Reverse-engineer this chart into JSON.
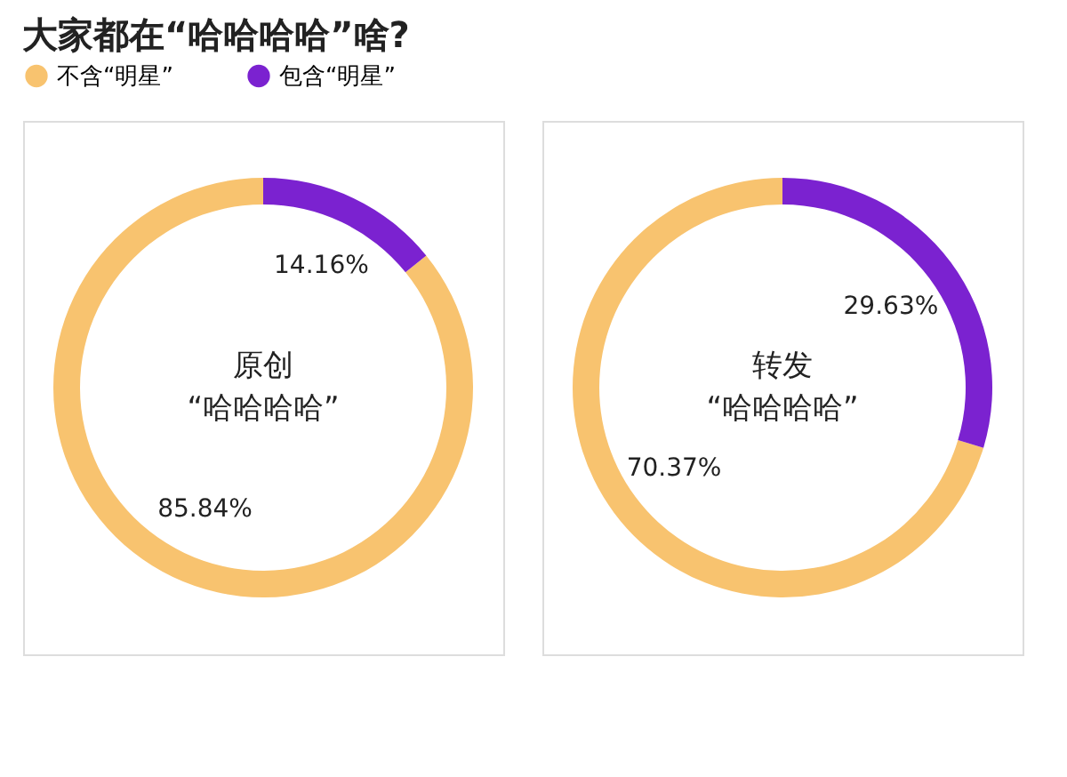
{
  "chart_data": [
    {
      "type": "donut",
      "title": "大家都在“哈哈哈哈”啥?",
      "categories": [
        "不含“明星”",
        "包含“明星”"
      ],
      "values": [
        85.84,
        14.16
      ],
      "colors": [
        "#f8c36f",
        "#7b22d0"
      ],
      "value_labels": [
        "85.84%",
        "14.16%"
      ],
      "annotations": [
        "原创",
        "“哈哈哈哈”"
      ],
      "legend": "top left"
    },
    {
      "type": "donut",
      "categories": [
        null,
        null
      ],
      "values": [
        70.37,
        29.63
      ],
      "colors": [
        "#f8c36f",
        "#7b22d0"
      ],
      "value_labels": [
        "70.37%",
        "29.63%"
      ],
      "annotations": [
        "转发",
        "“哈哈哈哈”"
      ]
    }
  ]
}
